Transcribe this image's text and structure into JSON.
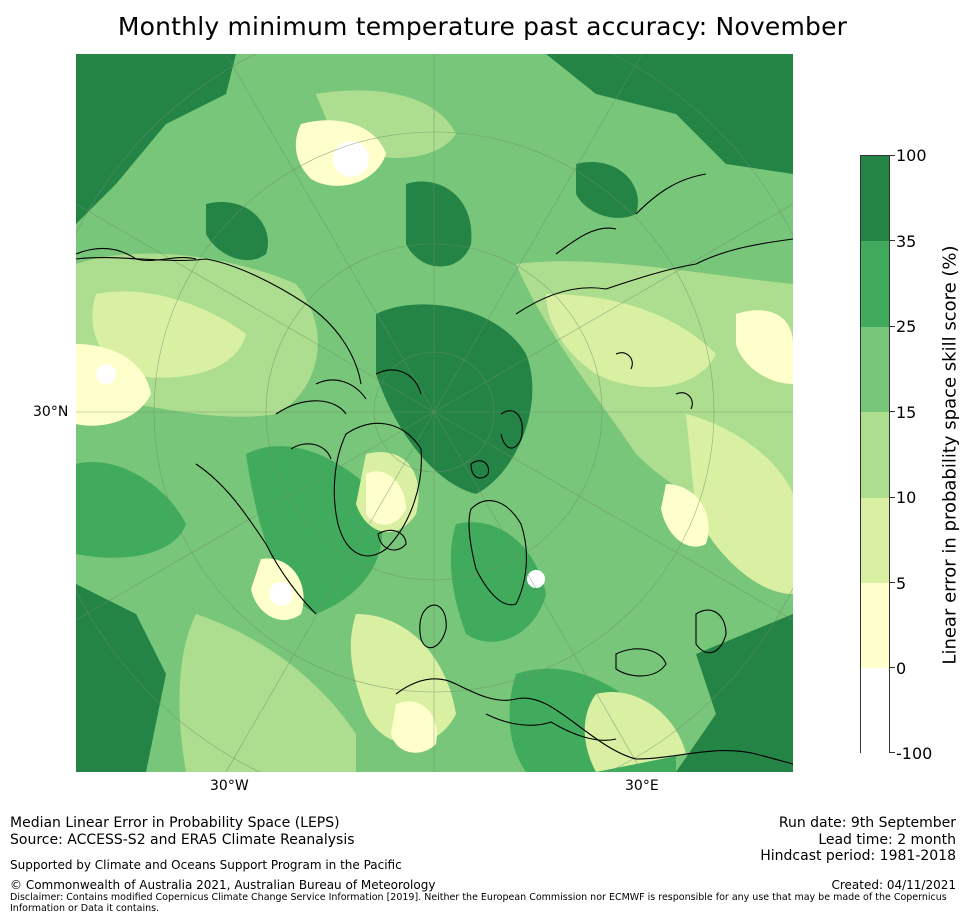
{
  "title": "Monthly minimum temperature past accuracy: November",
  "map": {
    "projection": "north-polar stereographic",
    "lat_labels": [
      "30°N"
    ],
    "lon_labels": [
      "30°W",
      "30°E"
    ],
    "land_outline_color": "#000000"
  },
  "colorbar": {
    "title": "Linear error in probability space skill score (%)",
    "tick_labels": [
      "100",
      "35",
      "25",
      "15",
      "10",
      "5",
      "0",
      "-100"
    ],
    "bins": [
      {
        "range": "35 to 100",
        "color": "#238445"
      },
      {
        "range": "25 to 35",
        "color": "#41ab5d"
      },
      {
        "range": "15 to 25",
        "color": "#78c679"
      },
      {
        "range": "10 to 15",
        "color": "#addd8e"
      },
      {
        "range": "5 to 10",
        "color": "#d9f0a3"
      },
      {
        "range": "0 to 5",
        "color": "#ffffcc"
      },
      {
        "range": "-100 to 0",
        "color": "#ffffff"
      }
    ]
  },
  "footer": {
    "left_line1": "Median Linear Error in Probability Space (LEPS)",
    "left_line2": "Source: ACCESS-S2 and ERA5 Climate Reanalysis",
    "support": "Supported by Climate and Oceans Support Program in the Pacific",
    "copyright": "© Commonwealth of Australia 2021, Australian Bureau of Meteorology",
    "disclaimer_line1": "Disclaimer: Contains modified Copernicus Climate Change Service Information [2019]. Neither the European Commission nor ECMWF is responsible for any use that may be made of the Copernicus",
    "disclaimer_line2": "Information or Data it contains.",
    "run_date": "Run date: 9th September",
    "lead_time": "Lead time: 2 month",
    "hindcast": "Hindcast period: 1981-2018",
    "created": "Created: 04/11/2021"
  }
}
